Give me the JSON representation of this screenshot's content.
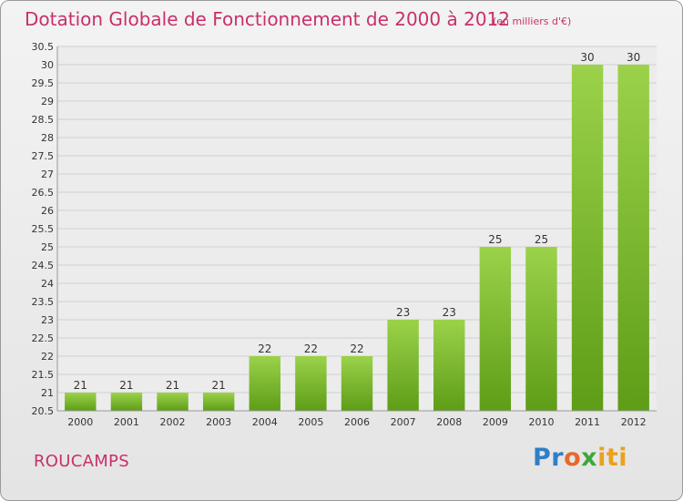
{
  "header": {
    "title": "Dotation Globale de Fonctionnement de 2000 à 2012",
    "subtitle": "(en milliers d'€)"
  },
  "footer": {
    "commune": "ROUCAMPS",
    "logo_text": "Proxiti"
  },
  "colors": {
    "text_accent": "#c8306a",
    "bar_light": "#9bd24a",
    "bar_dark": "#5e9d17",
    "grid": "#d0d0d0",
    "logo_letters": [
      "#2f7fc6",
      "#e8682a",
      "#3da83a",
      "#e8a21c"
    ]
  },
  "chart_data": {
    "type": "bar",
    "categories": [
      "2000",
      "2001",
      "2002",
      "2003",
      "2004",
      "2005",
      "2006",
      "2007",
      "2008",
      "2009",
      "2010",
      "2011",
      "2012"
    ],
    "values": [
      21,
      21,
      21,
      21,
      22,
      22,
      22,
      23,
      23,
      25,
      25,
      30,
      30
    ],
    "ylim": [
      20.5,
      30.5
    ],
    "ytick_step": 0.5,
    "yticks": [
      "20.5",
      "21",
      "21.5",
      "22",
      "22.5",
      "23",
      "23.5",
      "24",
      "24.5",
      "25",
      "25.5",
      "26",
      "26.5",
      "27",
      "27.5",
      "28",
      "28.5",
      "29",
      "29.5",
      "30",
      "30.5"
    ],
    "grid": true,
    "data_labels": true,
    "legend": "none"
  }
}
